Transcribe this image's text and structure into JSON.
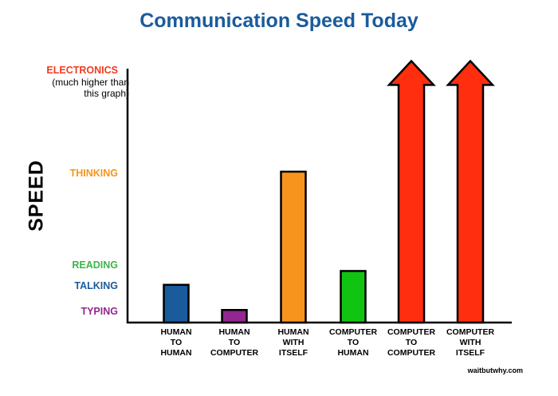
{
  "chart_data": {
    "type": "bar",
    "title": "Communication Speed Today",
    "ylabel": "SPEED",
    "xlabel": "",
    "ylim": [
      0,
      100
    ],
    "levels": [
      {
        "label": "ELECTRONICS",
        "value": 100,
        "color": "#f03a1e"
      },
      {
        "label": "THINKING",
        "value": 60,
        "color": "#f7941d"
      },
      {
        "label": "READING",
        "value": 22,
        "color": "#3cb54a"
      },
      {
        "label": "TALKING",
        "value": 15,
        "color": "#1a5b9c"
      },
      {
        "label": "TYPING",
        "value": 5,
        "color": "#93278f"
      }
    ],
    "electronics_note": [
      "(much higher than",
      "this graph)"
    ],
    "categories": [
      {
        "lines": [
          "HUMAN",
          "TO",
          "HUMAN"
        ],
        "value": 15,
        "color": "#1a5b9c",
        "shape": "bar"
      },
      {
        "lines": [
          "HUMAN",
          "TO",
          "COMPUTER"
        ],
        "value": 5,
        "color": "#93278f",
        "shape": "bar"
      },
      {
        "lines": [
          "HUMAN",
          "WITH",
          "ITSELF"
        ],
        "value": 60,
        "color": "#f7941d",
        "shape": "bar"
      },
      {
        "lines": [
          "COMPUTER",
          "TO",
          "HUMAN"
        ],
        "value": 20.5,
        "color": "#12c412",
        "shape": "bar"
      },
      {
        "lines": [
          "COMPUTER",
          "TO",
          "COMPUTER"
        ],
        "value": 104,
        "color": "#fe2e0e",
        "shape": "arrow"
      },
      {
        "lines": [
          "COMPUTER",
          "WITH",
          "ITSELF"
        ],
        "value": 104,
        "color": "#fe2e0e",
        "shape": "arrow"
      }
    ],
    "title_color": "#1a5b9c",
    "credit": "waitbutwhy.com"
  }
}
